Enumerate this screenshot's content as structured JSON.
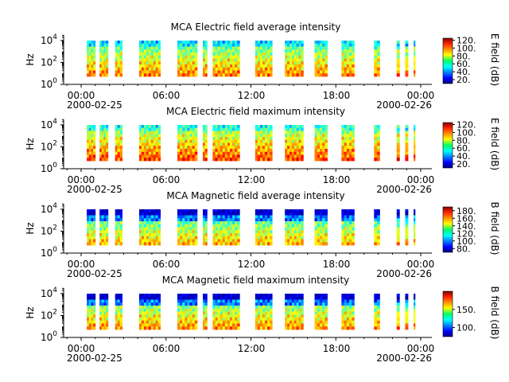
{
  "chart_data": [
    {
      "type": "heatmap",
      "title": "MCA  Electric field average intensity",
      "ylabel": "Hz",
      "yscale": "log",
      "yticks": [
        {
          "exp": "0",
          "value": 1
        },
        {
          "exp": "2",
          "value": 100
        },
        {
          "exp": "4",
          "value": 10000
        }
      ],
      "ylim": [
        1,
        30000
      ],
      "xlim": [
        "2000-02-25 00:00",
        "2000-02-26 00:00"
      ],
      "xticks": [
        "00:00",
        "06:00",
        "12:00",
        "18:00",
        "00:00"
      ],
      "date_labels": [
        "2000-02-25",
        "2000-02-26"
      ],
      "colorbar": {
        "label": "E field (dB)",
        "min": 10,
        "max": 125,
        "ticks": [
          "20.",
          "40.",
          "60.",
          "80.",
          "100.",
          "120."
        ]
      },
      "data_intervals_hours": [
        [
          0.4,
          1.0
        ],
        [
          1.3,
          1.9
        ],
        [
          2.4,
          2.9
        ],
        [
          4.1,
          5.6
        ],
        [
          6.8,
          8.2
        ],
        [
          8.6,
          8.9
        ],
        [
          9.3,
          11.2
        ],
        [
          12.3,
          13.5
        ],
        [
          14.4,
          15.7
        ],
        [
          16.5,
          17.4
        ],
        [
          18.4,
          19.3
        ],
        [
          20.7,
          21.1
        ],
        [
          22.3,
          22.5
        ],
        [
          22.9,
          23.1
        ],
        [
          23.5,
          23.6
        ]
      ],
      "value_range_db": [
        20,
        120
      ]
    },
    {
      "type": "heatmap",
      "title": "MCA  Electric field maximum intensity",
      "ylabel": "Hz",
      "yscale": "log",
      "yticks": [
        {
          "exp": "0",
          "value": 1
        },
        {
          "exp": "2",
          "value": 100
        },
        {
          "exp": "4",
          "value": 10000
        }
      ],
      "ylim": [
        1,
        30000
      ],
      "xlim": [
        "2000-02-25 00:00",
        "2000-02-26 00:00"
      ],
      "xticks": [
        "00:00",
        "06:00",
        "12:00",
        "18:00",
        "00:00"
      ],
      "date_labels": [
        "2000-02-25",
        "2000-02-26"
      ],
      "colorbar": {
        "label": "E field (dB)",
        "min": 10,
        "max": 125,
        "ticks": [
          "20.",
          "40.",
          "60.",
          "80.",
          "100.",
          "120."
        ]
      },
      "data_intervals_hours": [
        [
          0.4,
          1.0
        ],
        [
          1.3,
          1.9
        ],
        [
          2.4,
          2.9
        ],
        [
          4.1,
          5.6
        ],
        [
          6.8,
          8.2
        ],
        [
          8.6,
          8.9
        ],
        [
          9.3,
          11.2
        ],
        [
          12.3,
          13.5
        ],
        [
          14.4,
          15.7
        ],
        [
          16.5,
          17.4
        ],
        [
          18.4,
          19.3
        ],
        [
          20.7,
          21.1
        ],
        [
          22.3,
          22.5
        ],
        [
          22.9,
          23.1
        ],
        [
          23.5,
          23.6
        ]
      ],
      "value_range_db": [
        30,
        120
      ]
    },
    {
      "type": "heatmap",
      "title": "MCA  Magnetic field average intensity",
      "ylabel": "Hz",
      "yscale": "log",
      "yticks": [
        {
          "exp": "0",
          "value": 1
        },
        {
          "exp": "2",
          "value": 100
        },
        {
          "exp": "4",
          "value": 10000
        }
      ],
      "ylim": [
        1,
        30000
      ],
      "xlim": [
        "2000-02-25 00:00",
        "2000-02-26 00:00"
      ],
      "xticks": [
        "00:00",
        "06:00",
        "12:00",
        "18:00",
        "00:00"
      ],
      "date_labels": [
        "2000-02-25",
        "2000-02-26"
      ],
      "colorbar": {
        "label": "B field (dB)",
        "min": 70,
        "max": 190,
        "ticks": [
          "80.",
          "100.",
          "120.",
          "140.",
          "160.",
          "180."
        ]
      },
      "data_intervals_hours": [
        [
          0.4,
          1.0
        ],
        [
          1.3,
          1.9
        ],
        [
          2.4,
          2.9
        ],
        [
          4.1,
          5.6
        ],
        [
          6.8,
          8.2
        ],
        [
          8.6,
          8.9
        ],
        [
          9.3,
          11.2
        ],
        [
          12.3,
          13.5
        ],
        [
          14.4,
          15.7
        ],
        [
          16.5,
          17.4
        ],
        [
          18.4,
          19.3
        ],
        [
          20.7,
          21.1
        ],
        [
          22.3,
          22.5
        ],
        [
          22.9,
          23.1
        ],
        [
          23.5,
          23.6
        ]
      ],
      "value_range_db": [
        80,
        180
      ]
    },
    {
      "type": "heatmap",
      "title": "MCA  Magnetic field maximum intensity",
      "ylabel": "Hz",
      "yscale": "log",
      "yticks": [
        {
          "exp": "0",
          "value": 1
        },
        {
          "exp": "2",
          "value": 100
        },
        {
          "exp": "4",
          "value": 10000
        }
      ],
      "ylim": [
        1,
        30000
      ],
      "xlim": [
        "2000-02-25 00:00",
        "2000-02-26 00:00"
      ],
      "xticks": [
        "00:00",
        "06:00",
        "12:00",
        "18:00",
        "00:00"
      ],
      "date_labels": [
        "2000-02-25",
        "2000-02-26"
      ],
      "colorbar": {
        "label": "B field (dB)",
        "min": 75,
        "max": 200,
        "ticks": [
          "100.",
          "150."
        ]
      },
      "data_intervals_hours": [
        [
          0.4,
          1.0
        ],
        [
          1.3,
          1.9
        ],
        [
          2.4,
          2.9
        ],
        [
          4.1,
          5.6
        ],
        [
          6.8,
          8.2
        ],
        [
          8.6,
          8.9
        ],
        [
          9.3,
          11.2
        ],
        [
          12.3,
          13.5
        ],
        [
          14.4,
          15.7
        ],
        [
          16.5,
          17.4
        ],
        [
          18.4,
          19.3
        ],
        [
          20.7,
          21.1
        ],
        [
          22.3,
          22.5
        ],
        [
          22.9,
          23.1
        ],
        [
          23.5,
          23.6
        ]
      ],
      "value_range_db": [
        80,
        190
      ]
    }
  ]
}
